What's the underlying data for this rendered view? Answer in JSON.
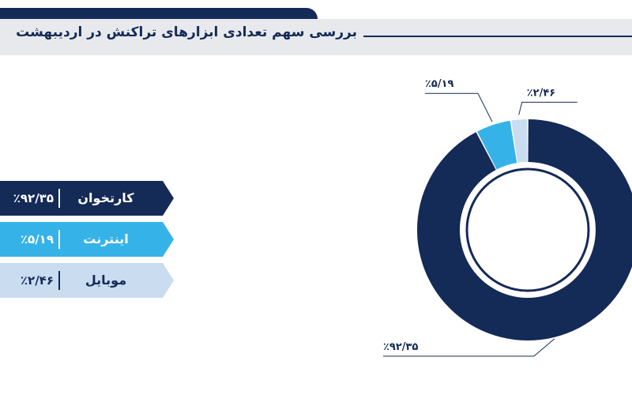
{
  "header": {
    "title": "بررسی سهم تعدادی ابزارهای تراکنش در اردیبهشت"
  },
  "chart_data": {
    "type": "pie",
    "variant": "donut",
    "categories": [
      "کارتخوان",
      "اینترنت",
      "موبایل"
    ],
    "values": [
      92.35,
      5.19,
      2.46
    ],
    "value_labels": [
      "٪۹۲/۳۵",
      "٪۵/۱۹",
      "٪۲/۴۶"
    ],
    "colors": [
      "#142a57",
      "#35b3e8",
      "#c9dcf0"
    ],
    "legend_placement": "left"
  },
  "legend": [
    {
      "label": "کارتخوان",
      "value": "٪۹۲/۳۵",
      "bg": "#142a57",
      "fg": "#ffffff"
    },
    {
      "label": "اینترنت",
      "value": "٪۵/۱۹",
      "bg": "#35b3e8",
      "fg": "#ffffff"
    },
    {
      "label": "موبایل",
      "value": "٪۲/۴۶",
      "bg": "#c9dcf0",
      "fg": "#142a57"
    }
  ]
}
